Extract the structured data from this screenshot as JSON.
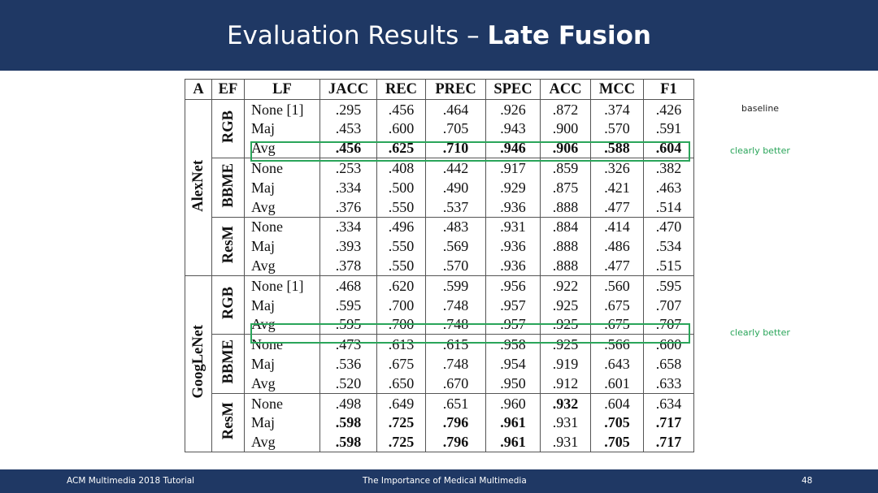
{
  "slide": {
    "title_plain": "Evaluation Results – ",
    "title_bold": "Late Fusion"
  },
  "table": {
    "headers": [
      "A",
      "EF",
      "LF",
      "JACC",
      "REC",
      "PREC",
      "SPEC",
      "ACC",
      "MCC",
      "F1"
    ],
    "groups": [
      {
        "a": "AlexNet",
        "blocks": [
          {
            "ef": "RGB",
            "rows": [
              {
                "lf": "None [1]",
                "vals": [
                  ".295",
                  ".456",
                  ".464",
                  ".926",
                  ".872",
                  ".374",
                  ".426"
                ],
                "bold": [
                  false,
                  false,
                  false,
                  false,
                  false,
                  false,
                  false
                ]
              },
              {
                "lf": "Maj",
                "vals": [
                  ".453",
                  ".600",
                  ".705",
                  ".943",
                  ".900",
                  ".570",
                  ".591"
                ],
                "bold": [
                  false,
                  false,
                  false,
                  false,
                  false,
                  false,
                  false
                ]
              },
              {
                "lf": "Avg",
                "vals": [
                  ".456",
                  ".625",
                  ".710",
                  ".946",
                  ".906",
                  ".588",
                  ".604"
                ],
                "bold": [
                  true,
                  true,
                  true,
                  true,
                  true,
                  true,
                  true
                ]
              }
            ]
          },
          {
            "ef": "BBME",
            "rows": [
              {
                "lf": "None",
                "vals": [
                  ".253",
                  ".408",
                  ".442",
                  ".917",
                  ".859",
                  ".326",
                  ".382"
                ],
                "bold": [
                  false,
                  false,
                  false,
                  false,
                  false,
                  false,
                  false
                ]
              },
              {
                "lf": "Maj",
                "vals": [
                  ".334",
                  ".500",
                  ".490",
                  ".929",
                  ".875",
                  ".421",
                  ".463"
                ],
                "bold": [
                  false,
                  false,
                  false,
                  false,
                  false,
                  false,
                  false
                ]
              },
              {
                "lf": "Avg",
                "vals": [
                  ".376",
                  ".550",
                  ".537",
                  ".936",
                  ".888",
                  ".477",
                  ".514"
                ],
                "bold": [
                  false,
                  false,
                  false,
                  false,
                  false,
                  false,
                  false
                ]
              }
            ]
          },
          {
            "ef": "ResM",
            "rows": [
              {
                "lf": "None",
                "vals": [
                  ".334",
                  ".496",
                  ".483",
                  ".931",
                  ".884",
                  ".414",
                  ".470"
                ],
                "bold": [
                  false,
                  false,
                  false,
                  false,
                  false,
                  false,
                  false
                ]
              },
              {
                "lf": "Maj",
                "vals": [
                  ".393",
                  ".550",
                  ".569",
                  ".936",
                  ".888",
                  ".486",
                  ".534"
                ],
                "bold": [
                  false,
                  false,
                  false,
                  false,
                  false,
                  false,
                  false
                ]
              },
              {
                "lf": "Avg",
                "vals": [
                  ".378",
                  ".550",
                  ".570",
                  ".936",
                  ".888",
                  ".477",
                  ".515"
                ],
                "bold": [
                  false,
                  false,
                  false,
                  false,
                  false,
                  false,
                  false
                ]
              }
            ]
          }
        ]
      },
      {
        "a": "GoogLeNet",
        "blocks": [
          {
            "ef": "RGB",
            "rows": [
              {
                "lf": "None [1]",
                "vals": [
                  ".468",
                  ".620",
                  ".599",
                  ".956",
                  ".922",
                  ".560",
                  ".595"
                ],
                "bold": [
                  false,
                  false,
                  false,
                  false,
                  false,
                  false,
                  false
                ]
              },
              {
                "lf": "Maj",
                "vals": [
                  ".595",
                  ".700",
                  ".748",
                  ".957",
                  ".925",
                  ".675",
                  ".707"
                ],
                "bold": [
                  false,
                  false,
                  false,
                  false,
                  false,
                  false,
                  false
                ]
              },
              {
                "lf": "Avg",
                "vals": [
                  ".595",
                  ".700",
                  ".748",
                  ".957",
                  ".925",
                  ".675",
                  ".707"
                ],
                "bold": [
                  false,
                  false,
                  false,
                  false,
                  false,
                  false,
                  false
                ]
              }
            ]
          },
          {
            "ef": "BBME",
            "rows": [
              {
                "lf": "None",
                "vals": [
                  ".473",
                  ".613",
                  ".615",
                  ".958",
                  ".925",
                  ".566",
                  ".600"
                ],
                "bold": [
                  false,
                  false,
                  false,
                  false,
                  false,
                  false,
                  false
                ]
              },
              {
                "lf": "Maj",
                "vals": [
                  ".536",
                  ".675",
                  ".748",
                  ".954",
                  ".919",
                  ".643",
                  ".658"
                ],
                "bold": [
                  false,
                  false,
                  false,
                  false,
                  false,
                  false,
                  false
                ]
              },
              {
                "lf": "Avg",
                "vals": [
                  ".520",
                  ".650",
                  ".670",
                  ".950",
                  ".912",
                  ".601",
                  ".633"
                ],
                "bold": [
                  false,
                  false,
                  false,
                  false,
                  false,
                  false,
                  false
                ]
              }
            ]
          },
          {
            "ef": "ResM",
            "rows": [
              {
                "lf": "None",
                "vals": [
                  ".498",
                  ".649",
                  ".651",
                  ".960",
                  ".932",
                  ".604",
                  ".634"
                ],
                "bold": [
                  false,
                  false,
                  false,
                  false,
                  true,
                  false,
                  false
                ]
              },
              {
                "lf": "Maj",
                "vals": [
                  ".598",
                  ".725",
                  ".796",
                  ".961",
                  ".931",
                  ".705",
                  ".717"
                ],
                "bold": [
                  true,
                  true,
                  true,
                  true,
                  false,
                  true,
                  true
                ]
              },
              {
                "lf": "Avg",
                "vals": [
                  ".598",
                  ".725",
                  ".796",
                  ".961",
                  ".931",
                  ".705",
                  ".717"
                ],
                "bold": [
                  true,
                  true,
                  true,
                  true,
                  false,
                  true,
                  true
                ]
              }
            ]
          }
        ]
      }
    ]
  },
  "notes": {
    "baseline": "baseline",
    "better1": "clearly better",
    "better2": "clearly better",
    "better_color": "#2aa55a"
  },
  "footer": {
    "left": "ACM Multimedia 2018 Tutorial",
    "center": "The Importance of Medical Multimedia",
    "page": "48"
  },
  "colors": {
    "banner": "#1f3864",
    "highlight": "#2aa55a"
  }
}
